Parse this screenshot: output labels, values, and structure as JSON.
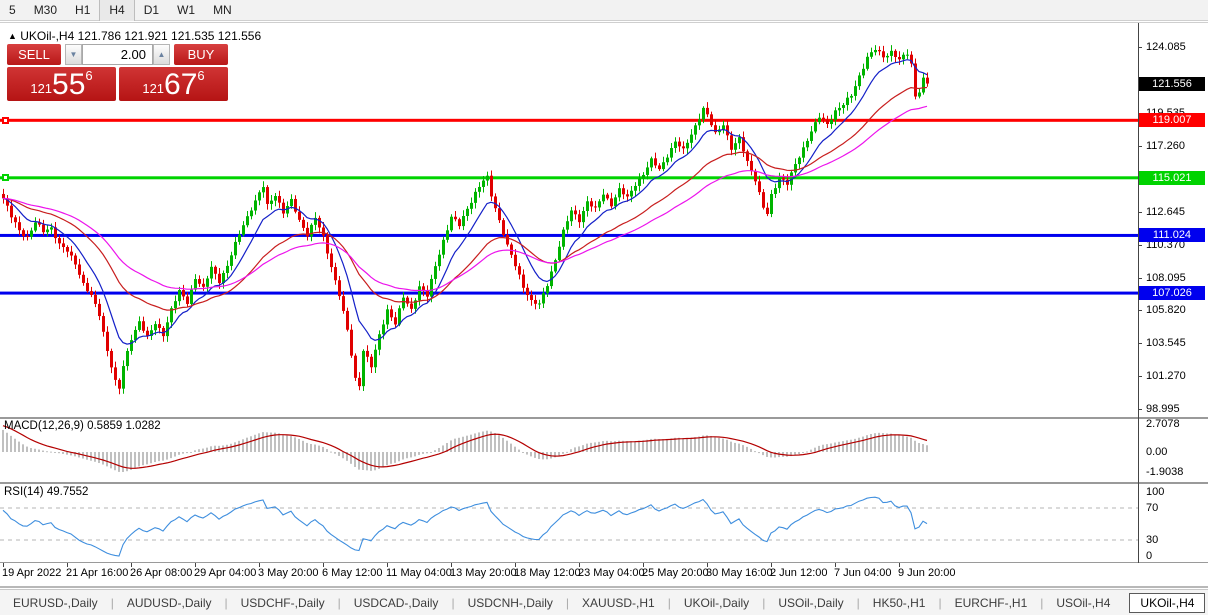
{
  "toolbar": {
    "timeframes": [
      "5",
      "M30",
      "H1",
      "H4",
      "D1",
      "W1",
      "MN"
    ],
    "active": "H4"
  },
  "chart_title": {
    "arrow": "▲",
    "symbol": "UKOil-,H4",
    "ohlc": "121.786 121.921 121.535 121.556"
  },
  "trade_panel": {
    "sell_label": "SELL",
    "buy_label": "BUY",
    "volume": "2.00",
    "spin_down": "▼",
    "spin_up": "▲",
    "sell_price": {
      "small": "121",
      "big": "55",
      "sup": "6"
    },
    "buy_price": {
      "small": "121",
      "big": "67",
      "sup": "6"
    }
  },
  "chart_data": [
    {
      "type": "candlestick",
      "symbol": "UKOil-,H4",
      "x_labels": [
        "19 Apr 2022",
        "21 Apr 16:00",
        "26 Apr 08:00",
        "29 Apr 04:00",
        "3 May 20:00",
        "6 May 12:00",
        "11 May 04:00",
        "13 May 20:00",
        "18 May 12:00",
        "23 May 04:00",
        "25 May 20:00",
        "30 May 16:00",
        "2 Jun 12:00",
        "7 Jun 04:00",
        "9 Jun 20:00"
      ],
      "bars_per_label": 16,
      "total_bars": 232,
      "ylim": [
        98.0,
        125.6
      ],
      "y_ticks": [
        124.085,
        119.535,
        117.26,
        112.645,
        110.37,
        108.095,
        105.82,
        103.545,
        101.27,
        98.995
      ],
      "current_price": 121.556,
      "current_price_color": "#000000",
      "h_lines": [
        {
          "price": 119.007,
          "color": "#ff0000",
          "handle": true
        },
        {
          "price": 115.021,
          "color": "#00d300",
          "handle": true
        },
        {
          "price": 111.024,
          "color": "#0000ee",
          "handle": false
        },
        {
          "price": 107.026,
          "color": "#0000ee",
          "handle": false
        }
      ],
      "up_color": "#00b400",
      "down_color": "#e00000",
      "ma_colors": [
        "#1420c8",
        "#c81e1e",
        "#ec14ec"
      ],
      "ma_periods": [
        10,
        30,
        50
      ],
      "price_path": [
        [
          0,
          113.6
        ],
        [
          2,
          112.3
        ],
        [
          4,
          111.4
        ],
        [
          6,
          110.9
        ],
        [
          8,
          111.9
        ],
        [
          10,
          111.3
        ],
        [
          12,
          111.6
        ],
        [
          14,
          110.4
        ],
        [
          16,
          109.9
        ],
        [
          18,
          109.1
        ],
        [
          20,
          107.7
        ],
        [
          22,
          106.8
        ],
        [
          24,
          105.5
        ],
        [
          26,
          103.1
        ],
        [
          28,
          100.9
        ],
        [
          29,
          100.4
        ],
        [
          30,
          101.9
        ],
        [
          32,
          103.9
        ],
        [
          34,
          105.1
        ],
        [
          36,
          103.9
        ],
        [
          38,
          104.9
        ],
        [
          40,
          104.2
        ],
        [
          42,
          105.9
        ],
        [
          44,
          107.1
        ],
        [
          46,
          106.4
        ],
        [
          48,
          108.1
        ],
        [
          50,
          107.3
        ],
        [
          52,
          108.8
        ],
        [
          54,
          107.9
        ],
        [
          56,
          108.9
        ],
        [
          58,
          110.4
        ],
        [
          60,
          111.8
        ],
        [
          62,
          112.9
        ],
        [
          64,
          113.9
        ],
        [
          65,
          114.4
        ],
        [
          66,
          113.1
        ],
        [
          68,
          113.9
        ],
        [
          70,
          112.6
        ],
        [
          72,
          113.4
        ],
        [
          74,
          112.1
        ],
        [
          76,
          111.1
        ],
        [
          78,
          112.2
        ],
        [
          80,
          110.9
        ],
        [
          82,
          108.9
        ],
        [
          84,
          106.9
        ],
        [
          86,
          104.4
        ],
        [
          88,
          101.1
        ],
        [
          89,
          100.7
        ],
        [
          90,
          103.1
        ],
        [
          92,
          101.9
        ],
        [
          94,
          104.1
        ],
        [
          96,
          105.9
        ],
        [
          98,
          104.9
        ],
        [
          100,
          106.7
        ],
        [
          102,
          105.9
        ],
        [
          104,
          107.5
        ],
        [
          106,
          106.8
        ],
        [
          108,
          108.9
        ],
        [
          110,
          110.7
        ],
        [
          112,
          112.3
        ],
        [
          114,
          111.7
        ],
        [
          116,
          112.9
        ],
        [
          118,
          114.0
        ],
        [
          120,
          114.8
        ],
        [
          121,
          115.0
        ],
        [
          122,
          113.8
        ],
        [
          124,
          112.1
        ],
        [
          126,
          110.3
        ],
        [
          128,
          108.9
        ],
        [
          130,
          107.5
        ],
        [
          132,
          106.5
        ],
        [
          134,
          106.2
        ],
        [
          136,
          107.6
        ],
        [
          138,
          109.4
        ],
        [
          140,
          111.3
        ],
        [
          142,
          112.7
        ],
        [
          144,
          112.1
        ],
        [
          146,
          113.4
        ],
        [
          148,
          112.8
        ],
        [
          150,
          113.9
        ],
        [
          152,
          113.2
        ],
        [
          154,
          114.2
        ],
        [
          156,
          113.6
        ],
        [
          158,
          114.6
        ],
        [
          160,
          115.3
        ],
        [
          162,
          116.2
        ],
        [
          164,
          115.6
        ],
        [
          166,
          116.6
        ],
        [
          168,
          117.5
        ],
        [
          170,
          116.9
        ],
        [
          172,
          118.1
        ],
        [
          174,
          119.2
        ],
        [
          175,
          119.8
        ],
        [
          176,
          119.3
        ],
        [
          178,
          118.1
        ],
        [
          180,
          118.8
        ],
        [
          182,
          117.0
        ],
        [
          184,
          117.7
        ],
        [
          186,
          116.2
        ],
        [
          188,
          114.9
        ],
        [
          190,
          112.9
        ],
        [
          191,
          112.5
        ],
        [
          192,
          113.8
        ],
        [
          194,
          115.1
        ],
        [
          196,
          114.6
        ],
        [
          198,
          115.9
        ],
        [
          200,
          117.1
        ],
        [
          202,
          118.3
        ],
        [
          204,
          119.2
        ],
        [
          206,
          118.7
        ],
        [
          208,
          119.7
        ],
        [
          210,
          120.1
        ],
        [
          212,
          120.7
        ],
        [
          214,
          122.1
        ],
        [
          216,
          123.4
        ],
        [
          218,
          123.9
        ],
        [
          220,
          123.4
        ],
        [
          222,
          123.8
        ],
        [
          224,
          123.2
        ],
        [
          226,
          123.6
        ],
        [
          227,
          122.9
        ],
        [
          228,
          120.7
        ],
        [
          229,
          121.1
        ],
        [
          230,
          121.9
        ],
        [
          231,
          121.556
        ]
      ]
    },
    {
      "type": "macd",
      "label": "MACD(12,26,9)",
      "current_values": "0.5859 1.0282",
      "axis_labels": [
        "2.7078",
        "0.00",
        "-1.9038"
      ],
      "axis_values": [
        2.7078,
        0.0,
        -1.9038
      ],
      "histogram_color": "#c0c0c0",
      "signal_color": "#b40000"
    },
    {
      "type": "rsi",
      "label": "RSI(14)",
      "current_value": "49.7552",
      "axis_labels": [
        "100",
        "70",
        "30",
        "0"
      ],
      "axis_values": [
        100,
        70,
        30,
        0
      ],
      "levels": [
        70,
        30
      ],
      "line_color": "#3e8ede"
    }
  ],
  "tabs": {
    "items": [
      "EURUSD-,Daily",
      "AUDUSD-,Daily",
      "USDCHF-,Daily",
      "USDCAD-,Daily",
      "USDCNH-,Daily",
      "XAUUSD-,H1",
      "UKOil-,Daily",
      "USOil-,Daily",
      "HK50-,H1",
      "EURCHF-,H1",
      "USOil-,H4",
      "UKOil-,H4"
    ],
    "active": "UKOil-,H4",
    "arrow_left": "◀",
    "arrow_right": "▶"
  }
}
